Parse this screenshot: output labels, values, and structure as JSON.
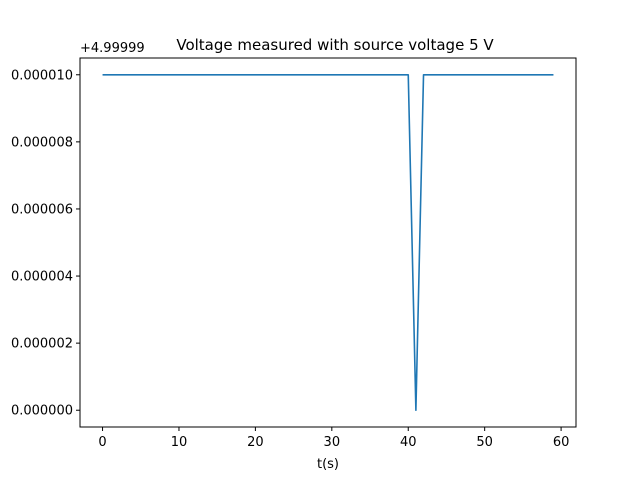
{
  "chart_data": {
    "type": "line",
    "title": "Voltage measured with source voltage 5 V",
    "xlabel": "t(s)",
    "ylabel": "",
    "y_offset_label": "+4.99999",
    "xlim": [
      -2.95,
      61.95
    ],
    "ylim": [
      -5e-07,
      1.05e-05
    ],
    "xticks": [
      0,
      10,
      20,
      30,
      40,
      50,
      60
    ],
    "xtick_labels": [
      "0",
      "10",
      "20",
      "30",
      "40",
      "50",
      "60"
    ],
    "yticks": [
      0.0,
      2e-06,
      4e-06,
      6e-06,
      8e-06,
      1e-05
    ],
    "ytick_labels": [
      "0.000000",
      "0.000002",
      "0.000004",
      "0.000006",
      "0.000008",
      "0.000010"
    ],
    "grid": false,
    "legend": "none",
    "series": [
      {
        "color": "#1f77b4",
        "x": [
          0,
          1,
          2,
          3,
          4,
          5,
          6,
          7,
          8,
          9,
          10,
          11,
          12,
          13,
          14,
          15,
          16,
          17,
          18,
          19,
          20,
          21,
          22,
          23,
          24,
          25,
          26,
          27,
          28,
          29,
          30,
          31,
          32,
          33,
          34,
          35,
          36,
          37,
          38,
          39,
          40,
          41,
          42,
          43,
          44,
          45,
          46,
          47,
          48,
          49,
          50,
          51,
          52,
          53,
          54,
          55,
          56,
          57,
          58,
          59
        ],
        "y": [
          1e-05,
          1e-05,
          1e-05,
          1e-05,
          1e-05,
          1e-05,
          1e-05,
          1e-05,
          1e-05,
          1e-05,
          1e-05,
          1e-05,
          1e-05,
          1e-05,
          1e-05,
          1e-05,
          1e-05,
          1e-05,
          1e-05,
          1e-05,
          1e-05,
          1e-05,
          1e-05,
          1e-05,
          1e-05,
          1e-05,
          1e-05,
          1e-05,
          1e-05,
          1e-05,
          1e-05,
          1e-05,
          1e-05,
          1e-05,
          1e-05,
          1e-05,
          1e-05,
          1e-05,
          1e-05,
          1e-05,
          1e-05,
          0.0,
          1e-05,
          1e-05,
          1e-05,
          1e-05,
          1e-05,
          1e-05,
          1e-05,
          1e-05,
          1e-05,
          1e-05,
          1e-05,
          1e-05,
          1e-05,
          1e-05,
          1e-05,
          1e-05,
          1e-05,
          1e-05
        ]
      }
    ]
  }
}
